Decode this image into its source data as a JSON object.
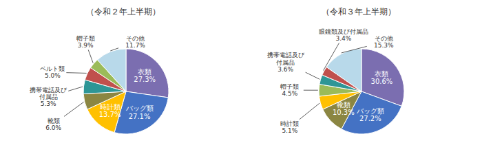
{
  "chart_data": [
    {
      "type": "pie",
      "title": "（令和２年上半期）",
      "categories": [
        "衣類",
        "バッグ類",
        "時計類",
        "靴類",
        "携帯電話及び\n付属品",
        "ベルト類",
        "帽子類",
        "その他"
      ],
      "values": [
        27.3,
        27.1,
        13.7,
        6.0,
        5.3,
        5.0,
        3.9,
        11.7
      ],
      "value_labels": [
        "27.3%",
        "27.1%",
        "13.7%",
        "6.0%",
        "5.3%",
        "5.0%",
        "3.9%",
        "11.7%"
      ],
      "colors": [
        "#7b6eb0",
        "#4472c4",
        "#ffc000",
        "#8b8642",
        "#2e9696",
        "#c0504d",
        "#9bbb59",
        "#b8d9ea"
      ],
      "data_labels": true
    },
    {
      "type": "pie",
      "title": "（令和３年上半期）",
      "categories": [
        "衣類",
        "バッグ類",
        "靴類",
        "時計類",
        "帽子類",
        "携帯電話及び\n付属品",
        "眼鏡類及び付属品",
        "その他"
      ],
      "values": [
        30.6,
        27.2,
        10.3,
        5.1,
        4.5,
        3.6,
        3.4,
        15.3
      ],
      "value_labels": [
        "30.6%",
        "27.2%",
        "10.3%",
        "5.1%",
        "4.5%",
        "3.6%",
        "3.4%",
        "15.3%"
      ],
      "colors": [
        "#7b6eb0",
        "#4472c4",
        "#8b8642",
        "#ffc000",
        "#9bbb59",
        "#2e9696",
        "#c0504d",
        "#b8d9ea"
      ],
      "data_labels": true
    }
  ]
}
